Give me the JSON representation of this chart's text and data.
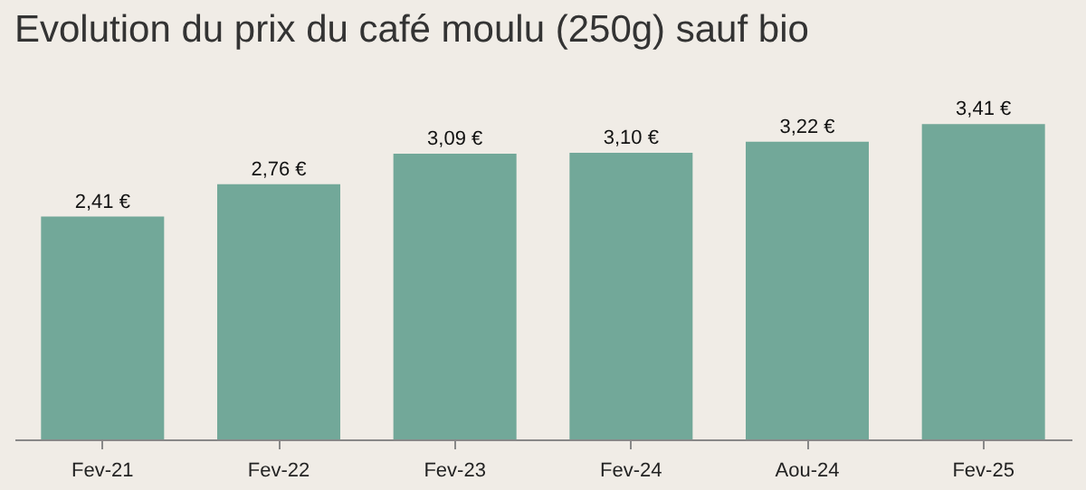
{
  "chart_data": {
    "type": "bar",
    "title": "Evolution du prix du café moulu (250g) sauf bio",
    "categories": [
      "Fev-21",
      "Fev-22",
      "Fev-23",
      "Fev-24",
      "Aou-24",
      "Fev-25"
    ],
    "values": [
      2.41,
      2.76,
      3.09,
      3.1,
      3.22,
      3.41
    ],
    "value_labels": [
      "2,41 €",
      "2,76 €",
      "3,09 €",
      "3,10 €",
      "3,22 €",
      "3,41 €"
    ],
    "color": "#72a899",
    "tick_labels": "x",
    "grid": false
  }
}
